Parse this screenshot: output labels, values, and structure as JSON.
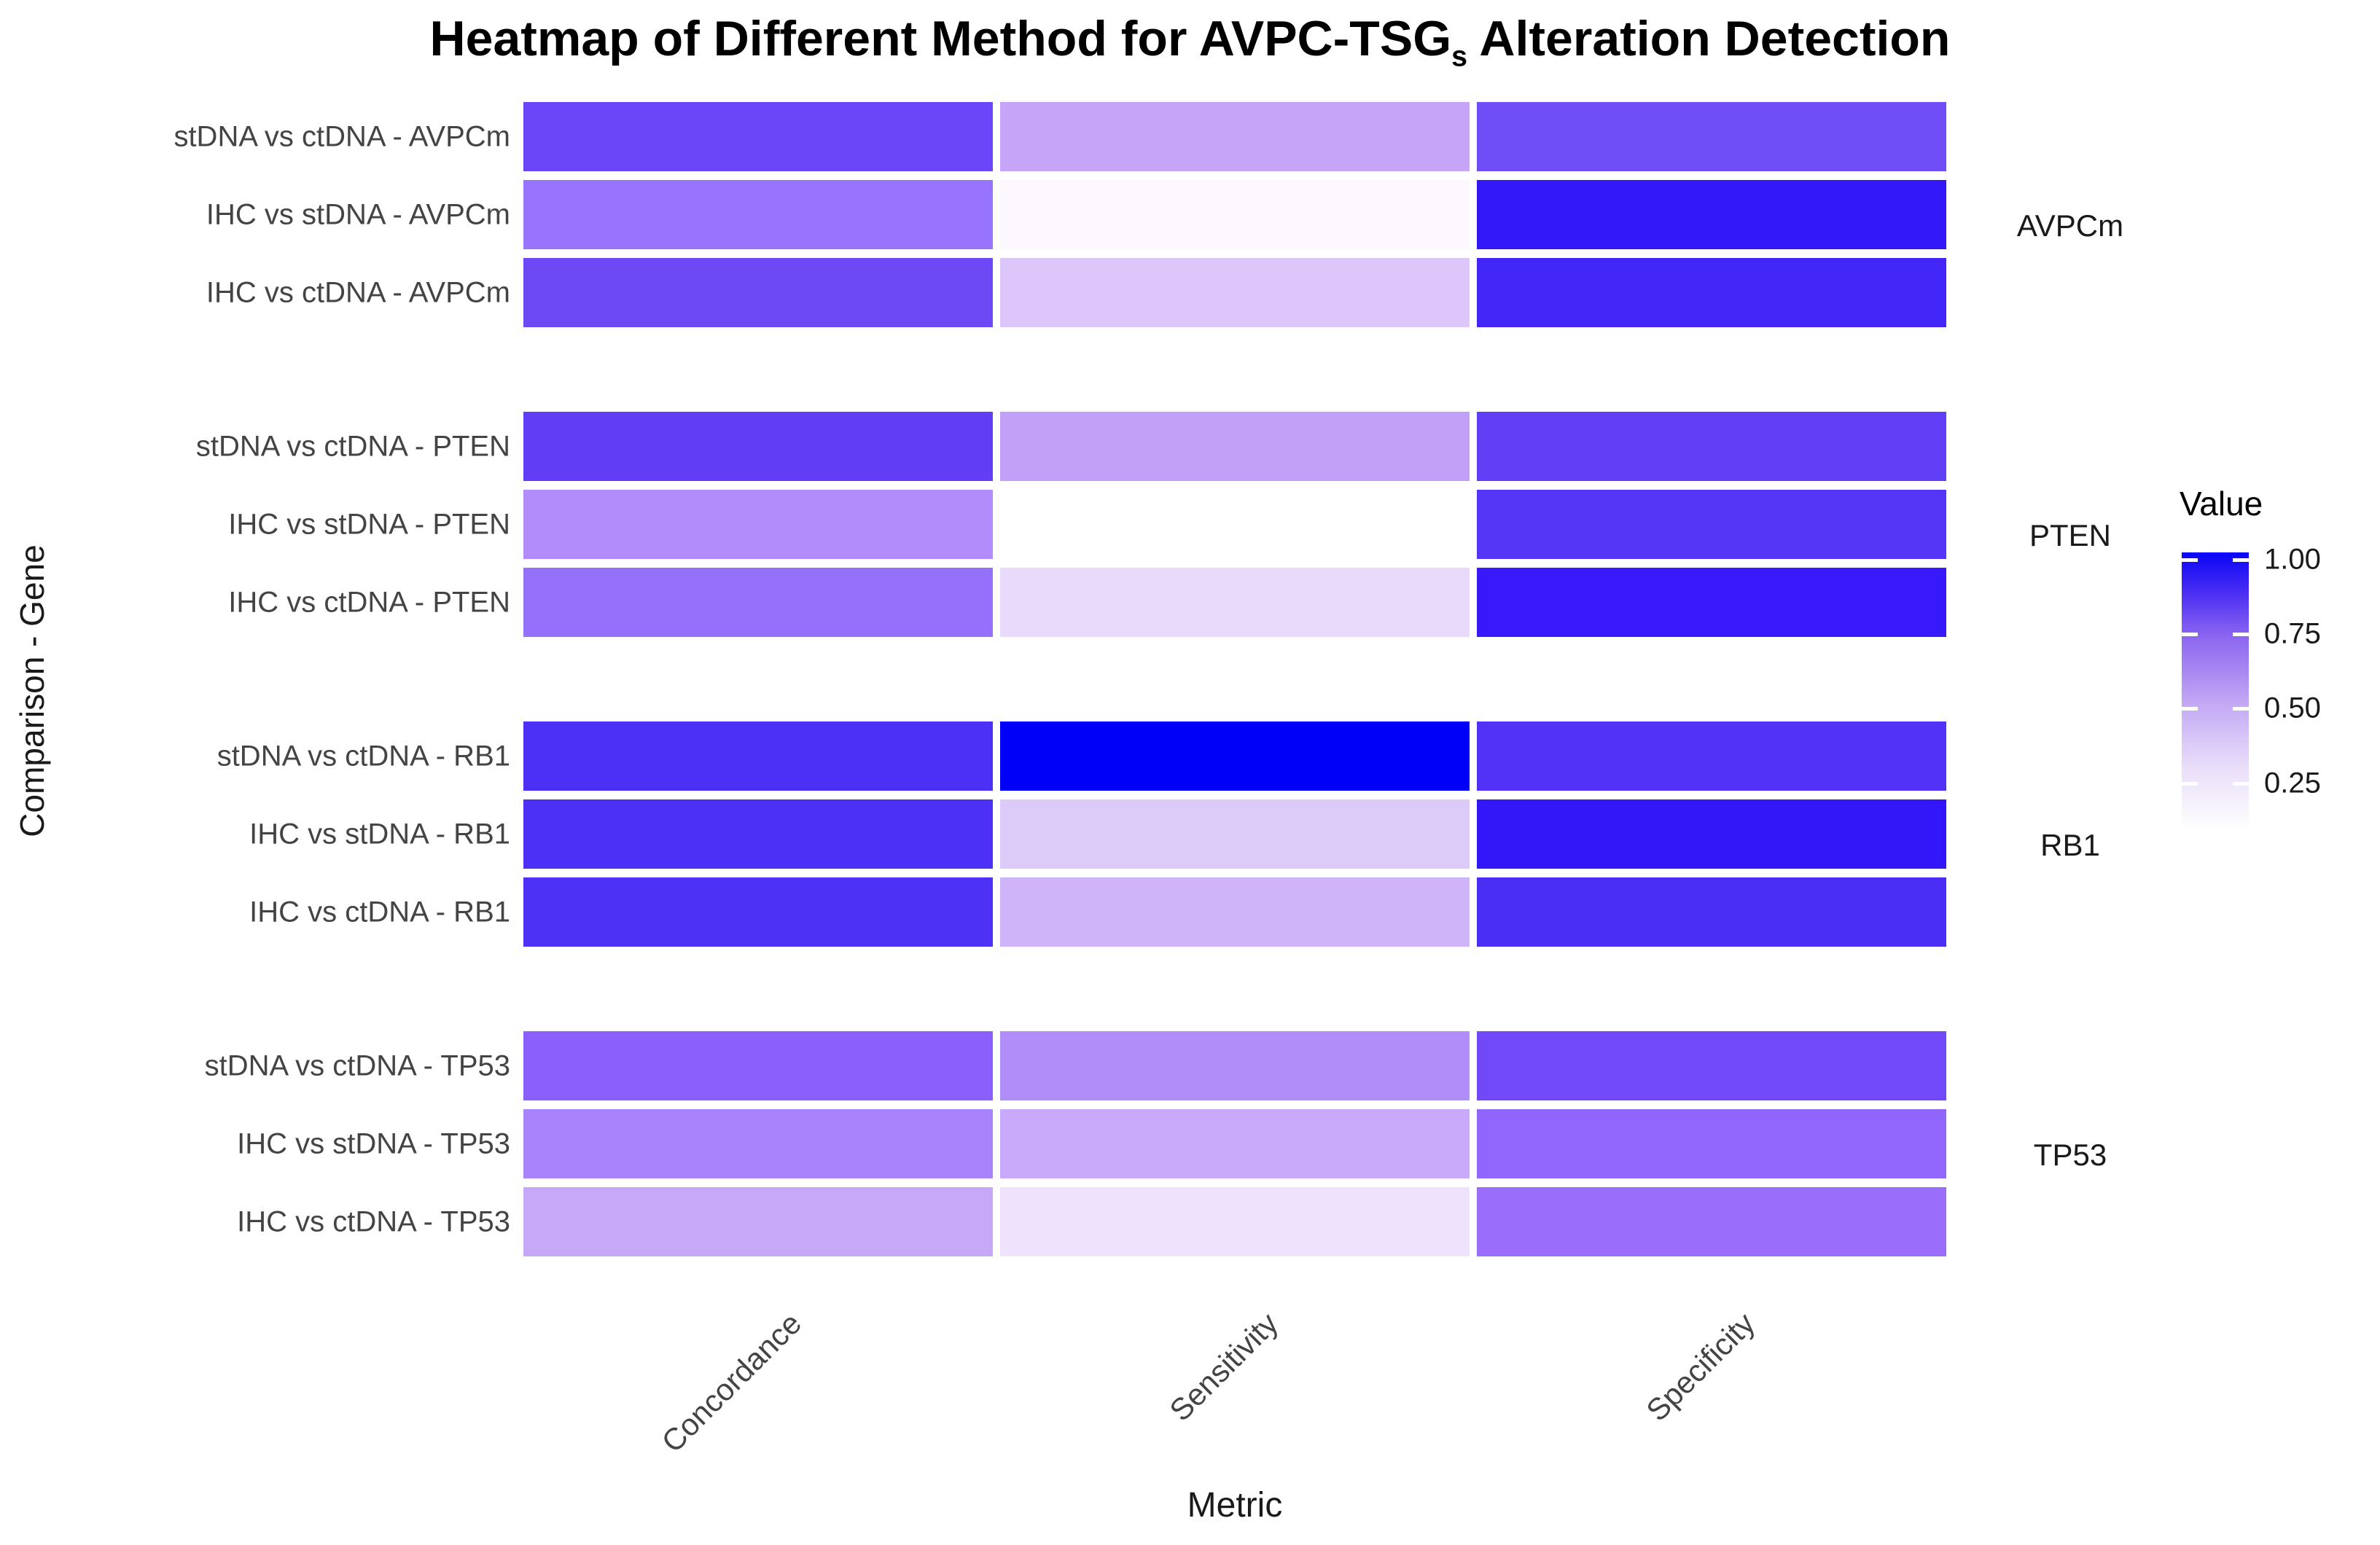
{
  "chart_data": {
    "type": "heatmap",
    "title": "Heatmap of Different Method for AVPC-TSGs Alteration Detection",
    "title_prefix": "Heatmap of Different Method for AVPC-TSG",
    "title_subscript": "s",
    "title_suffix": " Alteration Detection",
    "xlabel": "Metric",
    "ylabel": "Comparison - Gene",
    "columns": [
      "Concordance",
      "Sensitivity",
      "Specificity"
    ],
    "row_groups": [
      {
        "gene": "AVPCm",
        "rows": [
          {
            "label": "stDNA vs ctDNA - AVPCm",
            "values": [
              0.76,
              0.5,
              0.76
            ],
            "colors": [
              "#6b45f8",
              "#c6a4f8",
              "#6f4df7"
            ]
          },
          {
            "label": "IHC vs stDNA - AVPCm",
            "values": [
              0.63,
              0.13,
              0.88
            ],
            "colors": [
              "#9873fb",
              "#fdf8fe",
              "#3318f8"
            ]
          },
          {
            "label": "IHC vs ctDNA - AVPCm",
            "values": [
              0.76,
              0.41,
              0.86
            ],
            "colors": [
              "#6d49f6",
              "#ddc6fa",
              "#4227f8"
            ]
          }
        ]
      },
      {
        "gene": "PTEN",
        "rows": [
          {
            "label": "stDNA vs ctDNA - PTEN",
            "values": [
              0.79,
              0.51,
              0.79
            ],
            "colors": [
              "#613df6",
              "#c2a0f8",
              "#613ff6"
            ]
          },
          {
            "label": "IHC vs stDNA - PTEN",
            "values": [
              0.57,
              0.1,
              0.81
            ],
            "colors": [
              "#b18cfa",
              "#ffffff",
              "#5536f6"
            ]
          },
          {
            "label": "IHC vs ctDNA - PTEN",
            "values": [
              0.64,
              0.33,
              0.89
            ],
            "colors": [
              "#9570fa",
              "#e9d9fb",
              "#3719f9"
            ]
          }
        ]
      },
      {
        "gene": "RB1",
        "rows": [
          {
            "label": "stDNA vs ctDNA - RB1",
            "values": [
              0.83,
              1.0,
              0.82
            ],
            "colors": [
              "#4c30f6",
              "#0000fa",
              "#5233f6"
            ]
          },
          {
            "label": "IHC vs stDNA - RB1",
            "values": [
              0.83,
              0.4,
              0.89
            ],
            "colors": [
              "#4c30f6",
              "#dccaf9",
              "#3417f9"
            ]
          },
          {
            "label": "IHC vs ctDNA - RB1",
            "values": [
              0.83,
              0.46,
              0.84
            ],
            "colors": [
              "#4d31f5",
              "#d0b4f9",
              "#4a2ef5"
            ]
          }
        ]
      },
      {
        "gene": "TP53",
        "rows": [
          {
            "label": "stDNA vs ctDNA - TP53",
            "values": [
              0.68,
              0.58,
              0.74
            ],
            "colors": [
              "#8a5ffc",
              "#b08df9",
              "#7149f8"
            ]
          },
          {
            "label": "IHC vs stDNA - TP53",
            "values": [
              0.61,
              0.49,
              0.67
            ],
            "colors": [
              "#a983fb",
              "#c9a9f9",
              "#9166fc"
            ]
          },
          {
            "label": "IHC vs ctDNA - TP53",
            "values": [
              0.51,
              0.3,
              0.66
            ],
            "colors": [
              "#c7a8f8",
              "#eee2fc",
              "#9a6dfb"
            ]
          }
        ]
      }
    ],
    "legend": {
      "title": "Value",
      "tick_labels": [
        "1.00",
        "0.75",
        "0.50",
        "0.25"
      ],
      "gradient_stops": [
        "#0a05f7",
        "#4c2ef3",
        "#8a65f0",
        "#c3a9f4",
        "#e9def9",
        "#fefeff"
      ],
      "gradient_positions": [
        0,
        15,
        30,
        55,
        78,
        100
      ]
    },
    "layout_hints": {
      "legend_position": "right",
      "grid": "off",
      "x_tick_rotation": 45
    }
  }
}
